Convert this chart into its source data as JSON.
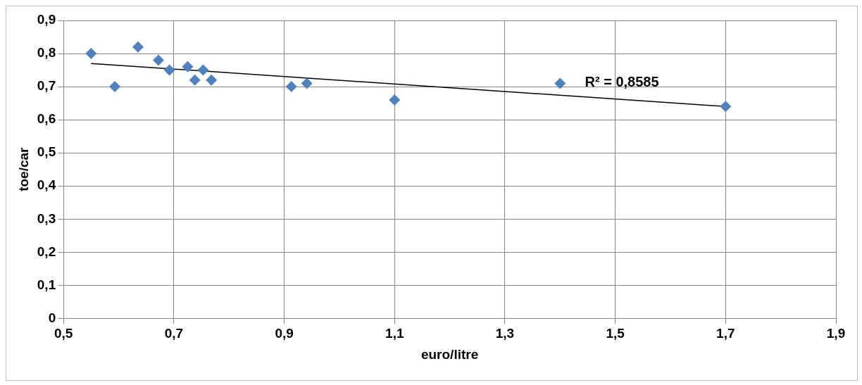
{
  "chart_data": {
    "type": "scatter",
    "xlabel": "euro/litre",
    "ylabel": "toe/car",
    "grid": true,
    "legend": false,
    "annotations": [
      "R² = 0,8585"
    ],
    "xlim": [
      0.5,
      1.9
    ],
    "xticks": [
      {
        "value": 0.5,
        "label": "0,5"
      },
      {
        "value": 0.7,
        "label": "0,7"
      },
      {
        "value": 0.9,
        "label": "0,9"
      },
      {
        "value": 1.1,
        "label": "1,1"
      },
      {
        "value": 1.3,
        "label": "1,3"
      },
      {
        "value": 1.5,
        "label": "1,5"
      },
      {
        "value": 1.7,
        "label": "1,7"
      },
      {
        "value": 1.9,
        "label": "1,9"
      }
    ],
    "ylim": [
      0,
      0.9
    ],
    "yticks": [
      0,
      {
        "value": 0.1,
        "label": "0,1"
      },
      {
        "value": 0.2,
        "label": "0,2"
      },
      {
        "value": 0.3,
        "label": "0,3"
      },
      {
        "value": 0.4,
        "label": "0,4"
      },
      {
        "value": 0.5,
        "label": "0,5"
      },
      {
        "value": 0.6,
        "label": "0,6"
      },
      {
        "value": 0.7,
        "label": "0,7"
      },
      {
        "value": 0.8,
        "label": "0,8"
      },
      {
        "value": 0.9,
        "label": "0,9"
      }
    ],
    "series": [
      {
        "marker": "diamond",
        "color": "#4f81bd",
        "x": [
          0.55,
          0.593,
          0.635,
          0.672,
          0.692,
          0.725,
          0.738,
          0.753,
          0.768,
          0.913,
          0.941,
          1.1,
          1.4,
          1.7
        ],
        "values": [
          0.8,
          0.7,
          0.82,
          0.78,
          0.75,
          0.76,
          0.72,
          0.75,
          0.72,
          0.7,
          0.71,
          0.66,
          0.71,
          0.64
        ]
      },
      {
        "type": "line",
        "marker": "none",
        "color": "#000000",
        "x": [
          0.55,
          1.7
        ],
        "values": [
          0.77,
          0.64
        ]
      }
    ]
  }
}
